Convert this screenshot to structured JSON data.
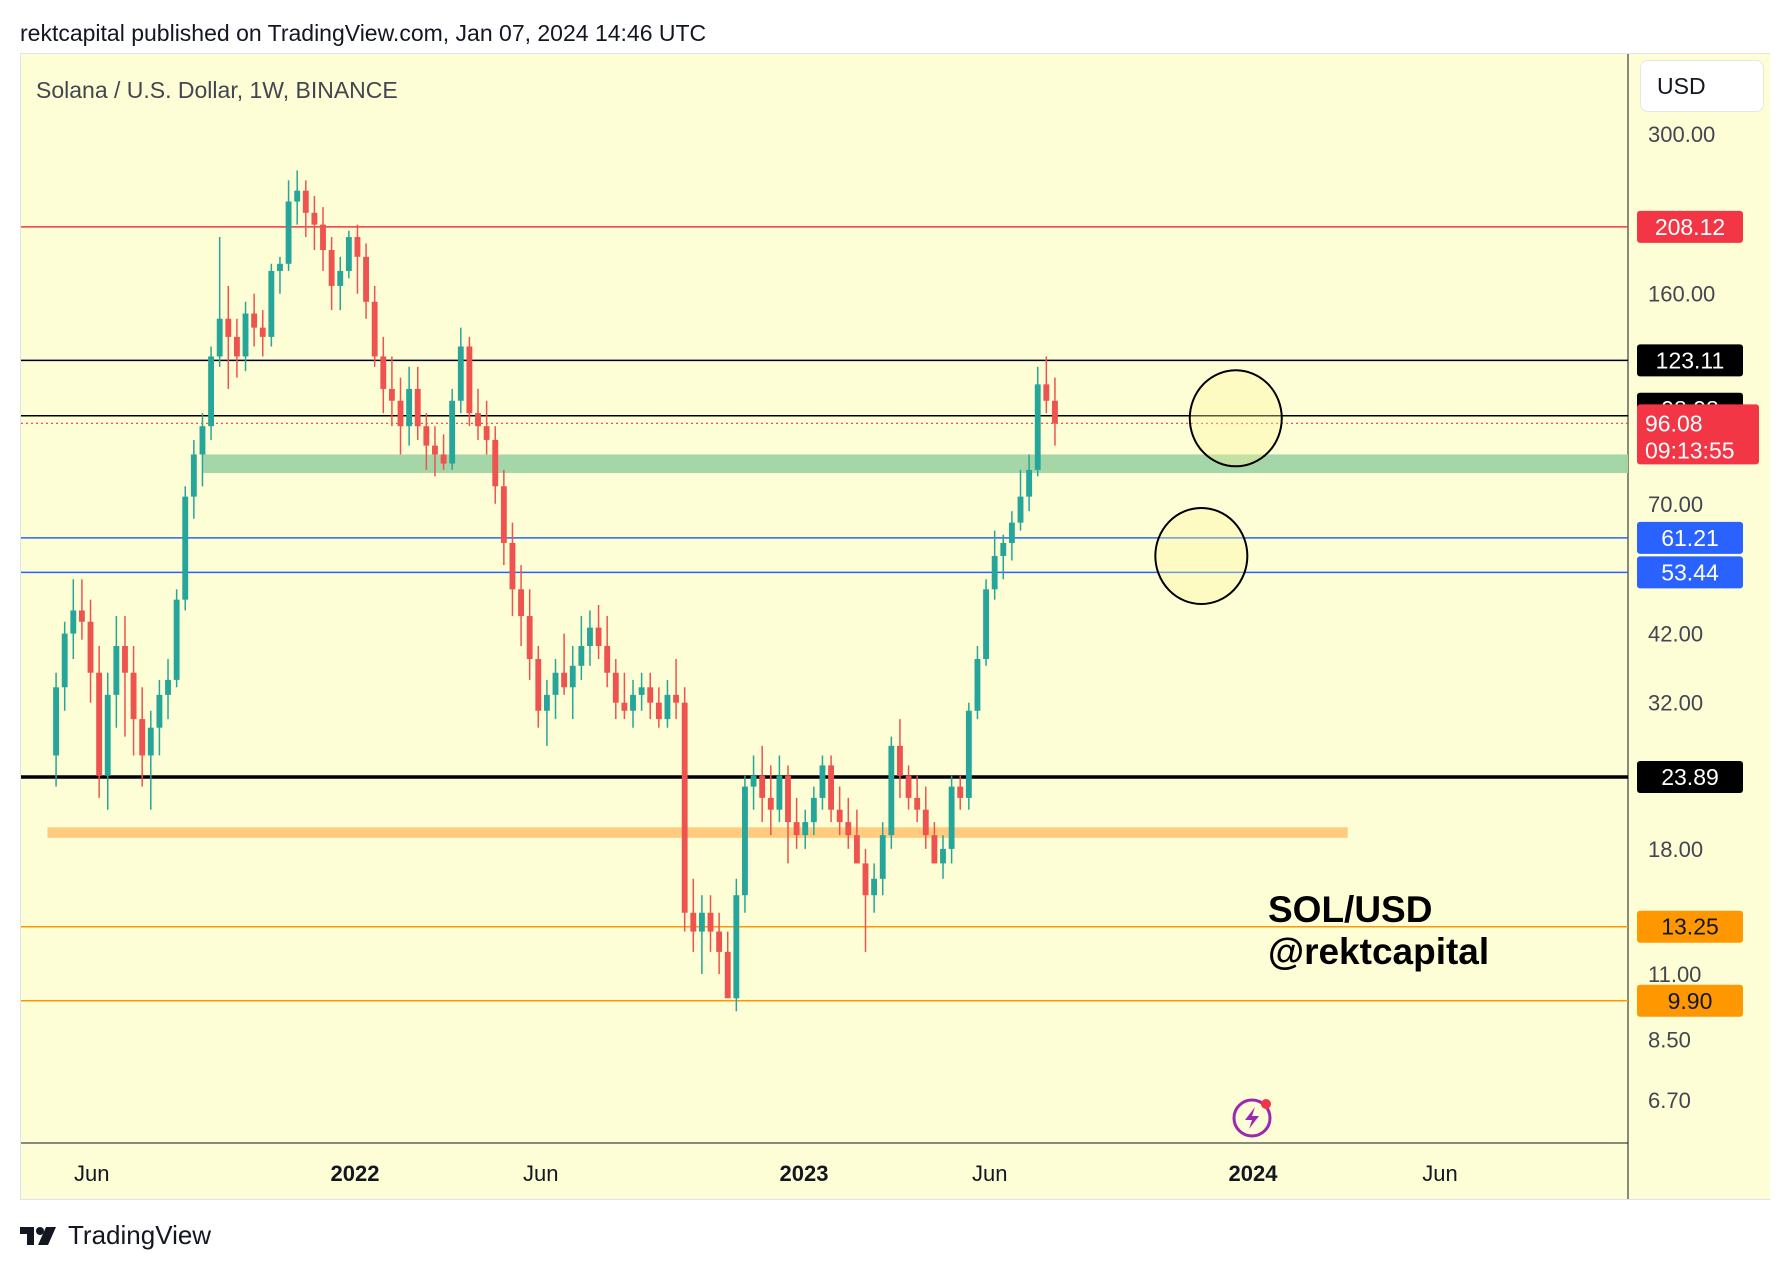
{
  "header": {
    "published": "rektcapital published on TradingView.com, Jan 07, 2024 14:46 UTC"
  },
  "chart": {
    "symbol_title": "Solana / U.S. Dollar, 1W, BINANCE",
    "currency_button": "USD",
    "watermark_line1": "SOL/USD",
    "watermark_line2": "@rektcapital",
    "background": "#fdfdd6",
    "up_color": "#26a69a",
    "down_color": "#ef5350"
  },
  "footer": {
    "brand": "TradingView"
  },
  "chart_data": {
    "type": "candlestick",
    "title": "Solana / U.S. Dollar, 1W, BINANCE",
    "y_scale": "log",
    "ylim": [
      6.0,
      370
    ],
    "y_ticks": [
      300,
      208.12,
      160,
      123.11,
      98.98,
      96.08,
      70,
      61.21,
      53.44,
      42,
      32,
      23.89,
      18,
      13.25,
      11,
      9.9,
      8.5,
      6.7
    ],
    "y_tick_labels": [
      "300.00",
      "160.00",
      "70.00",
      "42.00",
      "32.00",
      "18.00",
      "11.00",
      "8.50",
      "6.70"
    ],
    "x_tick_labels": [
      {
        "label": "Jun",
        "bold": false,
        "date": "2021-06-01"
      },
      {
        "label": "2022",
        "bold": true,
        "date": "2022-01-01"
      },
      {
        "label": "Jun",
        "bold": false,
        "date": "2022-06-01"
      },
      {
        "label": "2023",
        "bold": true,
        "date": "2023-01-01"
      },
      {
        "label": "Jun",
        "bold": false,
        "date": "2023-06-01"
      },
      {
        "label": "2024",
        "bold": true,
        "date": "2024-01-01"
      },
      {
        "label": "Jun",
        "bold": false,
        "date": "2024-06-01"
      }
    ],
    "first_candle_date": "2021-05-03",
    "last_price": {
      "value": "96.08",
      "countdown": "09:13:55",
      "color": "#f23645"
    },
    "horizontal_levels": [
      {
        "value": 208.12,
        "label": "208.12",
        "color": "#f23645",
        "width": 1.5
      },
      {
        "value": 123.11,
        "label": "123.11",
        "color": "#000000",
        "width": 1.5
      },
      {
        "value": 98.98,
        "label": "98.98",
        "color": "#000000",
        "width": 1.5
      },
      {
        "value": 61.21,
        "label": "61.21",
        "color": "#2962ff",
        "width": 1.5
      },
      {
        "value": 53.44,
        "label": "53.44",
        "color": "#2962ff",
        "width": 1.5
      },
      {
        "value": 23.89,
        "label": "23.89",
        "color": "#000000",
        "width": 3.5
      },
      {
        "value": 13.25,
        "label": "13.25",
        "color": "#ff9800",
        "width": 1.5
      },
      {
        "value": 9.9,
        "label": "9.90",
        "color": "#ff9800",
        "width": 1.5
      }
    ],
    "zones": [
      {
        "low": 79,
        "high": 85,
        "start_date": "2021-08-30",
        "end_date": null,
        "color": "#a5d6a7"
      },
      {
        "low": 18.8,
        "high": 19.6,
        "start_date": "2021-04-26",
        "end_date": "2024-03-18",
        "color": "#ffcc80"
      }
    ],
    "circles": [
      {
        "date": "2023-12-18",
        "price": 98
      },
      {
        "date": "2023-11-20",
        "price": 57
      }
    ],
    "candles": [
      [
        26,
        36,
        23,
        34
      ],
      [
        34,
        44,
        31,
        42
      ],
      [
        42,
        52,
        38,
        46
      ],
      [
        46,
        52,
        41,
        44
      ],
      [
        44,
        48,
        32,
        36
      ],
      [
        36,
        40,
        22,
        24
      ],
      [
        24,
        36,
        21,
        33
      ],
      [
        33,
        45,
        29,
        40
      ],
      [
        40,
        45,
        28,
        36
      ],
      [
        36,
        40,
        26,
        30
      ],
      [
        30,
        34,
        23,
        26
      ],
      [
        26,
        31,
        21,
        29
      ],
      [
        29,
        35,
        26,
        33
      ],
      [
        33,
        38,
        30,
        35
      ],
      [
        35,
        50,
        34,
        48
      ],
      [
        48,
        75,
        46,
        72
      ],
      [
        72,
        90,
        66,
        85
      ],
      [
        85,
        100,
        75,
        95
      ],
      [
        95,
        130,
        90,
        125
      ],
      [
        125,
        200,
        120,
        145
      ],
      [
        145,
        165,
        110,
        135
      ],
      [
        135,
        145,
        115,
        125
      ],
      [
        125,
        155,
        118,
        148
      ],
      [
        148,
        160,
        130,
        140
      ],
      [
        140,
        150,
        125,
        135
      ],
      [
        135,
        180,
        130,
        175
      ],
      [
        175,
        185,
        160,
        180
      ],
      [
        180,
        250,
        175,
        230
      ],
      [
        230,
        260,
        210,
        240
      ],
      [
        240,
        250,
        200,
        220
      ],
      [
        220,
        235,
        190,
        210
      ],
      [
        210,
        225,
        175,
        190
      ],
      [
        190,
        200,
        150,
        165
      ],
      [
        165,
        185,
        150,
        175
      ],
      [
        175,
        205,
        170,
        200
      ],
      [
        200,
        210,
        160,
        185
      ],
      [
        185,
        195,
        145,
        155
      ],
      [
        155,
        165,
        120,
        125
      ],
      [
        125,
        135,
        100,
        110
      ],
      [
        110,
        125,
        95,
        105
      ],
      [
        105,
        115,
        85,
        95
      ],
      [
        95,
        120,
        88,
        110
      ],
      [
        110,
        120,
        90,
        95
      ],
      [
        95,
        100,
        80,
        88
      ],
      [
        88,
        95,
        78,
        85
      ],
      [
        85,
        92,
        80,
        82
      ],
      [
        82,
        110,
        80,
        105
      ],
      [
        105,
        140,
        100,
        130
      ],
      [
        130,
        135,
        95,
        100
      ],
      [
        100,
        110,
        90,
        95
      ],
      [
        95,
        105,
        85,
        90
      ],
      [
        90,
        95,
        70,
        75
      ],
      [
        75,
        80,
        55,
        60
      ],
      [
        60,
        65,
        45,
        50
      ],
      [
        50,
        55,
        40,
        45
      ],
      [
        45,
        50,
        35,
        38
      ],
      [
        38,
        40,
        29,
        31
      ],
      [
        31,
        35,
        27,
        33
      ],
      [
        33,
        38,
        30,
        36
      ],
      [
        36,
        42,
        33,
        34
      ],
      [
        34,
        40,
        30,
        37
      ],
      [
        37,
        45,
        35,
        40
      ],
      [
        40,
        46,
        37,
        43
      ],
      [
        43,
        47,
        38,
        40
      ],
      [
        40,
        45,
        34,
        36
      ],
      [
        36,
        38,
        30,
        32
      ],
      [
        32,
        36,
        30,
        31
      ],
      [
        31,
        35,
        29,
        33
      ],
      [
        33,
        36,
        31,
        34
      ],
      [
        34,
        36,
        30,
        32
      ],
      [
        32,
        34,
        29,
        30
      ],
      [
        30,
        35,
        29,
        33
      ],
      [
        33,
        38,
        30,
        32
      ],
      [
        32,
        34,
        13,
        14
      ],
      [
        14,
        16,
        12,
        13
      ],
      [
        13,
        15,
        11,
        14
      ],
      [
        14,
        15,
        12,
        13
      ],
      [
        13,
        14,
        11,
        12
      ],
      [
        12,
        13,
        10,
        10
      ],
      [
        10,
        16,
        9.5,
        15
      ],
      [
        15,
        24,
        14,
        23
      ],
      [
        23,
        26,
        21,
        24
      ],
      [
        24,
        27,
        20,
        22
      ],
      [
        22,
        25,
        19,
        21
      ],
      [
        21,
        26,
        20,
        24
      ],
      [
        24,
        25,
        17,
        20
      ],
      [
        20,
        22,
        18,
        19
      ],
      [
        19,
        21,
        18,
        20
      ],
      [
        20,
        23,
        19,
        22
      ],
      [
        22,
        26,
        21,
        25
      ],
      [
        25,
        26,
        20,
        21
      ],
      [
        21,
        23,
        19,
        20
      ],
      [
        20,
        22,
        18,
        19
      ],
      [
        19,
        21,
        17,
        17
      ],
      [
        17,
        18,
        12,
        15
      ],
      [
        15,
        17,
        14,
        16
      ],
      [
        16,
        20,
        15,
        19
      ],
      [
        19,
        28,
        18,
        27
      ],
      [
        27,
        30,
        22,
        24
      ],
      [
        24,
        25,
        21,
        22
      ],
      [
        22,
        24,
        20,
        21
      ],
      [
        21,
        23,
        18,
        19
      ],
      [
        19,
        20,
        17,
        17
      ],
      [
        17,
        19,
        16,
        18
      ],
      [
        18,
        24,
        17,
        23
      ],
      [
        23,
        24,
        21,
        22
      ],
      [
        22,
        32,
        21,
        31
      ],
      [
        31,
        40,
        30,
        38
      ],
      [
        38,
        52,
        37,
        50
      ],
      [
        50,
        63,
        48,
        57
      ],
      [
        57,
        62,
        52,
        60
      ],
      [
        60,
        68,
        56,
        65
      ],
      [
        65,
        80,
        63,
        72
      ],
      [
        72,
        85,
        68,
        80
      ],
      [
        80,
        120,
        78,
        112
      ],
      [
        112,
        125,
        100,
        105
      ],
      [
        105,
        115,
        88,
        96
      ]
    ]
  }
}
